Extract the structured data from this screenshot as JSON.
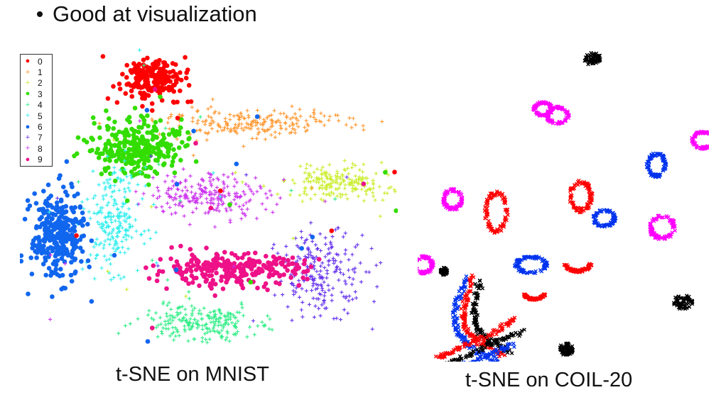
{
  "slide": {
    "bullet": "Good at visualization"
  },
  "chart_data": [
    {
      "type": "scatter",
      "title": "t-SNE on MNIST",
      "legend": {
        "placement": "top-left",
        "entries": [
          {
            "label": "0",
            "color": "#ff0000",
            "marker": "dot"
          },
          {
            "label": "1",
            "color": "#ff9933",
            "marker": "plus"
          },
          {
            "label": "2",
            "color": "#ccee33",
            "marker": "plus"
          },
          {
            "label": "3",
            "color": "#33dd00",
            "marker": "dot"
          },
          {
            "label": "4",
            "color": "#33ee88",
            "marker": "plus"
          },
          {
            "label": "5",
            "color": "#33eeee",
            "marker": "plus"
          },
          {
            "label": "6",
            "color": "#1166ee",
            "marker": "dot"
          },
          {
            "label": "7",
            "color": "#6633ee",
            "marker": "plus"
          },
          {
            "label": "8",
            "color": "#cc33ee",
            "marker": "plus"
          },
          {
            "label": "9",
            "color": "#ee1188",
            "marker": "dot"
          }
        ]
      },
      "clusters": [
        {
          "label": "0",
          "x": 0.35,
          "y": 0.9,
          "sx": 0.04,
          "sy": 0.035,
          "n": 220
        },
        {
          "label": "1",
          "x": 0.62,
          "y": 0.76,
          "sx": 0.13,
          "sy": 0.022,
          "n": 220
        },
        {
          "label": "2",
          "x": 0.85,
          "y": 0.57,
          "sx": 0.08,
          "sy": 0.03,
          "n": 200
        },
        {
          "label": "3",
          "x": 0.31,
          "y": 0.68,
          "sx": 0.06,
          "sy": 0.045,
          "n": 280
        },
        {
          "label": "4",
          "x": 0.48,
          "y": 0.12,
          "sx": 0.08,
          "sy": 0.03,
          "n": 220
        },
        {
          "label": "5",
          "x": 0.25,
          "y": 0.45,
          "sx": 0.035,
          "sy": 0.08,
          "n": 220
        },
        {
          "label": "6",
          "x": 0.1,
          "y": 0.4,
          "sx": 0.035,
          "sy": 0.07,
          "n": 320
        },
        {
          "label": "7",
          "x": 0.8,
          "y": 0.28,
          "sx": 0.06,
          "sy": 0.065,
          "n": 220
        },
        {
          "label": "8",
          "x": 0.5,
          "y": 0.53,
          "sx": 0.08,
          "sy": 0.035,
          "n": 220
        },
        {
          "label": "9",
          "x": 0.55,
          "y": 0.29,
          "sx": 0.1,
          "sy": 0.025,
          "n": 280
        }
      ]
    },
    {
      "type": "scatter",
      "title": "t-SNE on COIL-20",
      "colors": [
        "#000000",
        "#ff00ff",
        "#ff0000",
        "#0033ee"
      ],
      "shapes": [
        {
          "kind": "blob",
          "color": "#000000",
          "x": 0.6,
          "y": 0.97,
          "rx": 0.03,
          "ry": 0.02
        },
        {
          "kind": "ring",
          "color": "#ff00ff",
          "x": 0.43,
          "y": 0.81,
          "rx": 0.03,
          "ry": 0.02
        },
        {
          "kind": "ring",
          "color": "#ff00ff",
          "x": 0.48,
          "y": 0.79,
          "rx": 0.035,
          "ry": 0.025
        },
        {
          "kind": "ring",
          "color": "#ff00ff",
          "x": 0.98,
          "y": 0.71,
          "rx": 0.035,
          "ry": 0.025
        },
        {
          "kind": "ring",
          "color": "#0033ee",
          "x": 0.82,
          "y": 0.63,
          "rx": 0.03,
          "ry": 0.035
        },
        {
          "kind": "ring",
          "color": "#ff00ff",
          "x": 0.12,
          "y": 0.52,
          "rx": 0.03,
          "ry": 0.03
        },
        {
          "kind": "ring",
          "color": "#ff0000",
          "x": 0.27,
          "y": 0.48,
          "rx": 0.035,
          "ry": 0.06
        },
        {
          "kind": "ring",
          "color": "#ff0000",
          "x": 0.56,
          "y": 0.53,
          "rx": 0.035,
          "ry": 0.045
        },
        {
          "kind": "ring",
          "color": "#0033ee",
          "x": 0.64,
          "y": 0.46,
          "rx": 0.035,
          "ry": 0.025
        },
        {
          "kind": "ring",
          "color": "#ff00ff",
          "x": 0.84,
          "y": 0.43,
          "rx": 0.04,
          "ry": 0.035
        },
        {
          "kind": "ring",
          "color": "#ff00ff",
          "x": 0.02,
          "y": 0.31,
          "rx": 0.03,
          "ry": 0.025
        },
        {
          "kind": "ring",
          "color": "#0033ee",
          "x": 0.39,
          "y": 0.31,
          "rx": 0.05,
          "ry": 0.025
        },
        {
          "kind": "arc",
          "color": "#ff0000",
          "x": 0.55,
          "y": 0.33,
          "rx": 0.05,
          "ry": 0.04
        },
        {
          "kind": "arc",
          "color": "#ff0000",
          "x": 0.4,
          "y": 0.23,
          "rx": 0.04,
          "ry": 0.03
        },
        {
          "kind": "blob",
          "color": "#000000",
          "x": 0.91,
          "y": 0.19,
          "rx": 0.035,
          "ry": 0.025
        },
        {
          "kind": "blob",
          "color": "#000000",
          "x": 0.51,
          "y": 0.04,
          "rx": 0.025,
          "ry": 0.02
        },
        {
          "kind": "blob",
          "color": "#000000",
          "x": 0.09,
          "y": 0.29,
          "rx": 0.012,
          "ry": 0.012
        }
      ],
      "tracks": [
        {
          "color": "#0033ee",
          "points": [
            [
              0.17,
              0.27
            ],
            [
              0.13,
              0.18
            ],
            [
              0.13,
              0.1
            ],
            [
              0.18,
              0.05
            ],
            [
              0.28,
              0.0
            ]
          ]
        },
        {
          "color": "#ff0000",
          "points": [
            [
              0.19,
              0.27
            ],
            [
              0.16,
              0.18
            ],
            [
              0.16,
              0.11
            ],
            [
              0.21,
              0.06
            ],
            [
              0.3,
              0.02
            ]
          ]
        },
        {
          "color": "#000000",
          "points": [
            [
              0.22,
              0.26
            ],
            [
              0.19,
              0.17
            ],
            [
              0.2,
              0.11
            ],
            [
              0.24,
              0.07
            ],
            [
              0.32,
              0.03
            ]
          ]
        },
        {
          "color": "#000000",
          "points": [
            [
              0.06,
              -0.03
            ],
            [
              0.15,
              0.01
            ],
            [
              0.26,
              0.06
            ],
            [
              0.36,
              0.1
            ]
          ]
        },
        {
          "color": "#ff0000",
          "points": [
            [
              0.07,
              0.01
            ],
            [
              0.15,
              0.05
            ],
            [
              0.26,
              0.09
            ],
            [
              0.34,
              0.14
            ]
          ]
        },
        {
          "color": "#0033ee",
          "points": [
            [
              0.06,
              -0.06
            ],
            [
              0.15,
              -0.02
            ],
            [
              0.24,
              0.02
            ],
            [
              0.33,
              0.06
            ]
          ]
        }
      ]
    }
  ]
}
